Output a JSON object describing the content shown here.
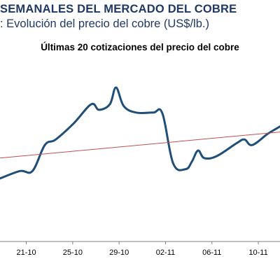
{
  "header": {
    "title": "SEMANALES DEL MERCADO DEL COBRE",
    "subtitle": ": Evolución del precio del cobre (US$/lb.)"
  },
  "chart_data": {
    "type": "line",
    "title": "Últimas 20 cotizaciones del precio del cobre",
    "xlabel": "",
    "ylabel": "",
    "x_tick_labels": [
      "21-10",
      "25-10",
      "29-10",
      "02-11",
      "06-11",
      "10-11"
    ],
    "x_tick_positions": [
      1,
      4,
      7,
      10,
      13,
      16
    ],
    "xlim": [
      -0.7,
      17.4
    ],
    "ylim": [
      0,
      10
    ],
    "grid": false,
    "legend": "none",
    "series": [
      {
        "values": [
          [
            -0.7,
            3.4
          ],
          [
            0.6,
            3.8
          ],
          [
            1.4,
            3.8
          ],
          [
            2.2,
            5.2
          ],
          [
            2.9,
            5.5
          ],
          [
            4.1,
            6.4
          ],
          [
            5.2,
            7.4
          ],
          [
            5.7,
            7.1
          ],
          [
            6.4,
            7.4
          ],
          [
            6.8,
            8.3
          ],
          [
            7.3,
            7.3
          ],
          [
            8.1,
            6.95
          ],
          [
            9.2,
            6.95
          ],
          [
            9.8,
            6.9
          ],
          [
            10.5,
            4.2
          ],
          [
            11.3,
            3.9
          ],
          [
            11.7,
            4.3
          ],
          [
            12.1,
            4.9
          ],
          [
            12.5,
            4.5
          ],
          [
            13.3,
            4.6
          ],
          [
            14.6,
            5.3
          ],
          [
            15.1,
            5.5
          ],
          [
            15.6,
            5.2
          ],
          [
            16.6,
            5.8
          ],
          [
            17.4,
            6.2
          ]
        ],
        "color": "#1f4e79"
      },
      {
        "type": "trendline",
        "values": [
          [
            -0.7,
            4.5
          ],
          [
            17.4,
            5.9
          ]
        ],
        "color": "#c0504d"
      }
    ]
  }
}
